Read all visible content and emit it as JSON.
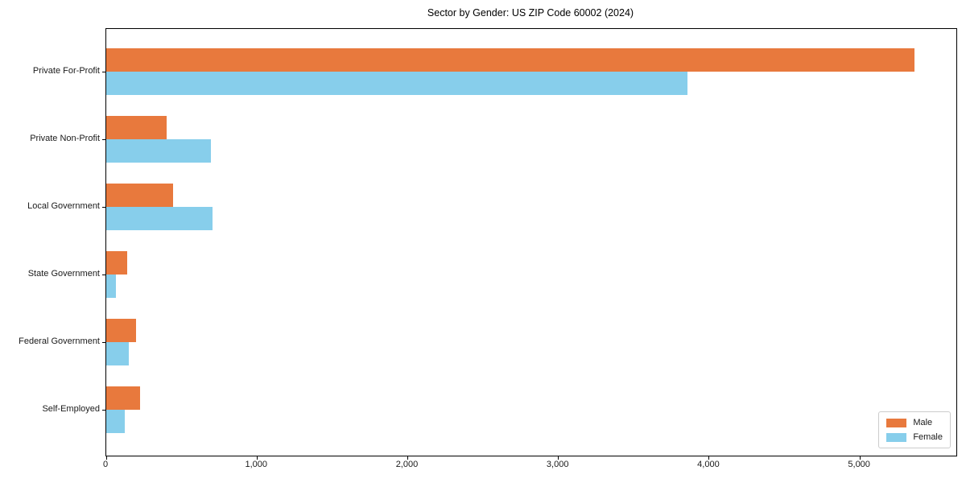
{
  "figure": {
    "background": "#ffffff"
  },
  "chart_data": {
    "type": "bar",
    "orientation": "horizontal",
    "title": "Sector by Gender: US ZIP Code 60002 (2024)",
    "categories": [
      "Private For-Profit",
      "Private Non-Profit",
      "Local Government",
      "State Government",
      "Federal Government",
      "Self-Employed"
    ],
    "series": [
      {
        "name": "Male",
        "color": "#e8793d",
        "values": [
          5360,
          400,
          445,
          140,
          200,
          225
        ]
      },
      {
        "name": "Female",
        "color": "#87ceeb",
        "values": [
          3855,
          695,
          705,
          65,
          150,
          120
        ]
      }
    ],
    "xlabel": "",
    "ylabel": "",
    "xlim": [
      0,
      5640
    ],
    "x_ticks": [
      0,
      1000,
      2000,
      3000,
      4000,
      5000
    ],
    "x_tick_labels": [
      "0",
      "1,000",
      "2,000",
      "3,000",
      "4,000",
      "5,000"
    ],
    "grid": false,
    "legend_position": "lower right",
    "axis_color": "#000000",
    "text_color": "#1a1a1a"
  }
}
